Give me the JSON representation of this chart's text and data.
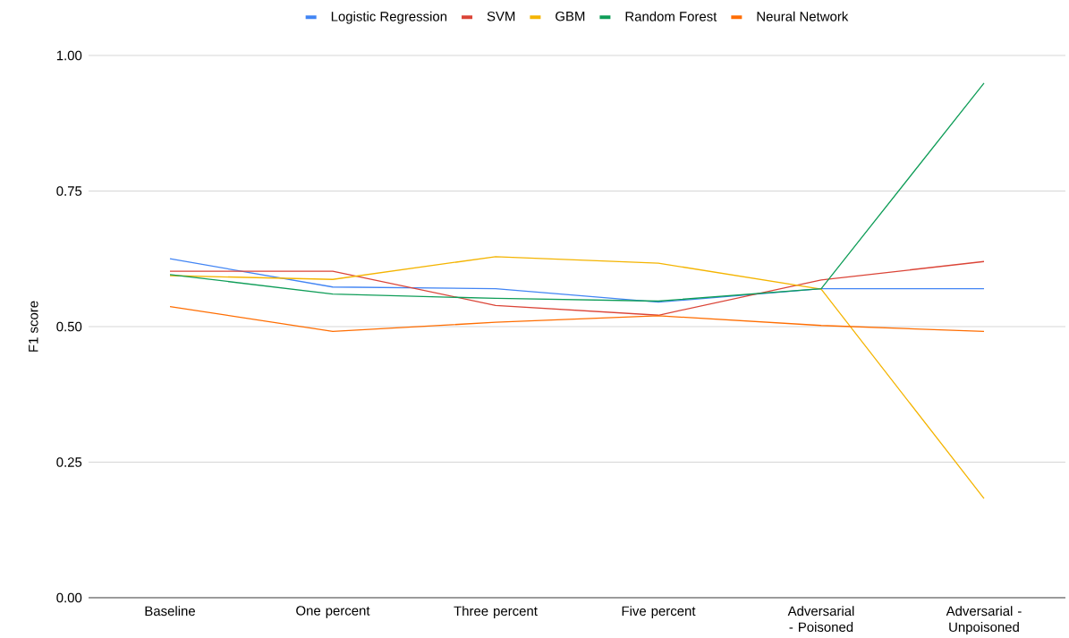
{
  "chart_data": {
    "type": "line",
    "ylabel": "F1 score",
    "categories": [
      "Baseline",
      "One percent",
      "Three percent",
      "Five percent",
      "Adversarial - Poisoned",
      "Adversarial - Unpoisoned"
    ],
    "series": [
      {
        "name": "Logistic Regression",
        "color": "#4285f4",
        "values": [
          0.625,
          0.573,
          0.57,
          0.545,
          0.57,
          0.57
        ]
      },
      {
        "name": "SVM",
        "color": "#db4437",
        "values": [
          0.602,
          0.602,
          0.539,
          0.521,
          0.586,
          0.62
        ]
      },
      {
        "name": "GBM",
        "color": "#f4b400",
        "values": [
          0.594,
          0.587,
          0.629,
          0.617,
          0.569,
          0.183
        ]
      },
      {
        "name": "Random Forest",
        "color": "#0f9d58",
        "values": [
          0.596,
          0.56,
          0.552,
          0.547,
          0.57,
          0.949
        ]
      },
      {
        "name": "Neural Network",
        "color": "#ff6d01",
        "values": [
          0.537,
          0.491,
          0.508,
          0.52,
          0.502,
          0.491
        ]
      }
    ],
    "ylim": [
      0,
      1
    ],
    "yticks": [
      {
        "value": 0,
        "label": "0.00"
      },
      {
        "value": 0.25,
        "label": "0.25"
      },
      {
        "value": 0.5,
        "label": "0.50"
      },
      {
        "value": 0.75,
        "label": "0.75"
      },
      {
        "value": 1,
        "label": "1.00"
      }
    ],
    "grid": "y",
    "legend": "top",
    "marker": "none",
    "line_style": "solid"
  }
}
